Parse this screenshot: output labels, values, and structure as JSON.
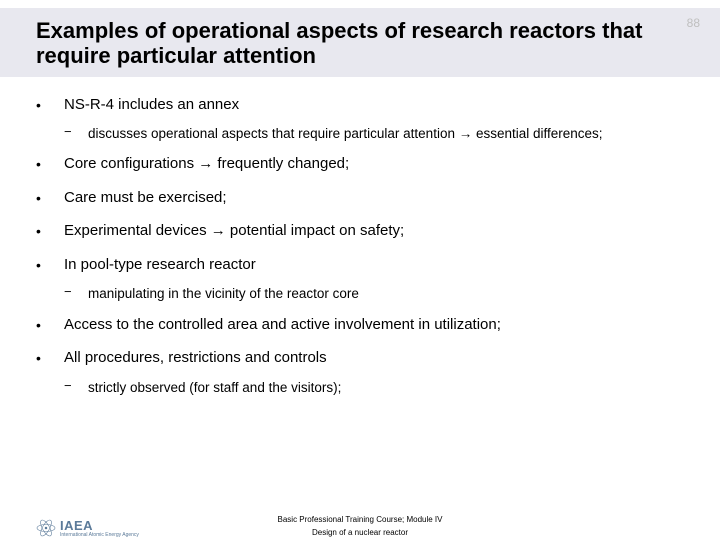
{
  "page_number": "88",
  "title": "Examples of operational aspects of research reactors that require particular attention",
  "bullets": [
    {
      "text": "NS-R-4 includes an annex",
      "subs": [
        {
          "text": "discusses operational aspects that require particular attention → essential differences;"
        }
      ]
    },
    {
      "text": "Core configurations → frequently changed;",
      "subs": []
    },
    {
      "text": "Care must be exercised;",
      "subs": []
    },
    {
      "text": "Experimental devices → potential impact on safety;",
      "subs": []
    },
    {
      "text": "In pool-type research reactor",
      "subs": [
        {
          "text": "manipulating in the vicinity of the reactor core"
        }
      ]
    },
    {
      "text": "Access to the controlled area and active involvement in utilization;",
      "subs": []
    },
    {
      "text": "All procedures, restrictions and controls",
      "subs": [
        {
          "text": "strictly observed (for staff and the visitors);"
        }
      ]
    }
  ],
  "footer": {
    "line1": "Basic Professional Training Course; Module IV",
    "line2": "Design of a nuclear reactor"
  },
  "logo": {
    "acronym": "IAEA",
    "subtitle": "International Atomic Energy Agency"
  },
  "colors": {
    "title_band_bg": "#e8e8ef",
    "page_num": "#bfbfbf",
    "logo_color": "#5b7a99"
  }
}
